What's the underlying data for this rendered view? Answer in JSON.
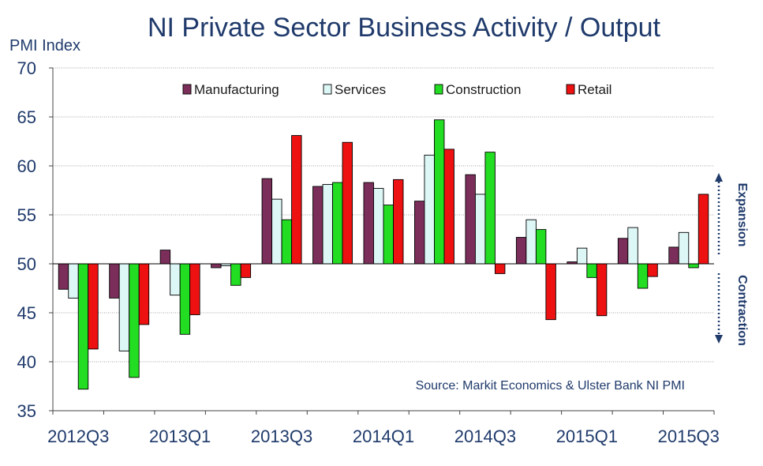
{
  "chart_data": {
    "type": "bar",
    "title": "NI Private Sector Business Activity / Output",
    "ylabel": "PMI Index",
    "xlabel": "",
    "ylim": [
      35,
      70
    ],
    "yticks": [
      "35",
      "40",
      "45",
      "50",
      "55",
      "60",
      "65",
      "70"
    ],
    "baseline": 50,
    "grid": true,
    "legend_position": "top",
    "categories": [
      "2012Q3",
      "2012Q4",
      "2013Q1",
      "2013Q2",
      "2013Q3",
      "2013Q4",
      "2014Q1",
      "2014Q2",
      "2014Q3",
      "2014Q4",
      "2015Q1",
      "2015Q2",
      "2015Q3"
    ],
    "xtick_labels": [
      "2012Q3",
      "2013Q1",
      "2013Q3",
      "2014Q1",
      "2014Q3",
      "2015Q1",
      "2015Q3"
    ],
    "series": [
      {
        "name": "Manufacturing",
        "color": "#7b2e5a",
        "values": [
          47.4,
          46.5,
          51.4,
          49.6,
          58.7,
          57.9,
          58.3,
          56.4,
          59.1,
          52.7,
          50.2,
          52.6,
          51.7
        ]
      },
      {
        "name": "Services",
        "color": "#ddf7f7",
        "values": [
          46.5,
          41.1,
          46.8,
          49.8,
          56.6,
          58.1,
          57.7,
          61.1,
          57.1,
          54.5,
          51.6,
          53.7,
          53.2
        ]
      },
      {
        "name": "Construction",
        "color": "#22dd22",
        "values": [
          37.2,
          38.4,
          42.8,
          47.8,
          54.5,
          58.3,
          56.0,
          64.7,
          61.4,
          53.5,
          48.6,
          47.5,
          49.6
        ]
      },
      {
        "name": "Retail",
        "color": "#ee1111",
        "values": [
          41.3,
          43.8,
          44.8,
          48.6,
          63.1,
          62.4,
          58.6,
          61.7,
          49.0,
          44.3,
          44.7,
          48.7,
          57.1
        ]
      }
    ],
    "annotations": {
      "source": "Source: Markit Economics & Ulster Bank NI PMI",
      "expansion": "Expansion",
      "contraction": "Contraction"
    }
  },
  "colors": {
    "text": "#1f3a6b",
    "axis": "#444444",
    "grid": "#888888",
    "arrow": "#1f3a6b"
  }
}
